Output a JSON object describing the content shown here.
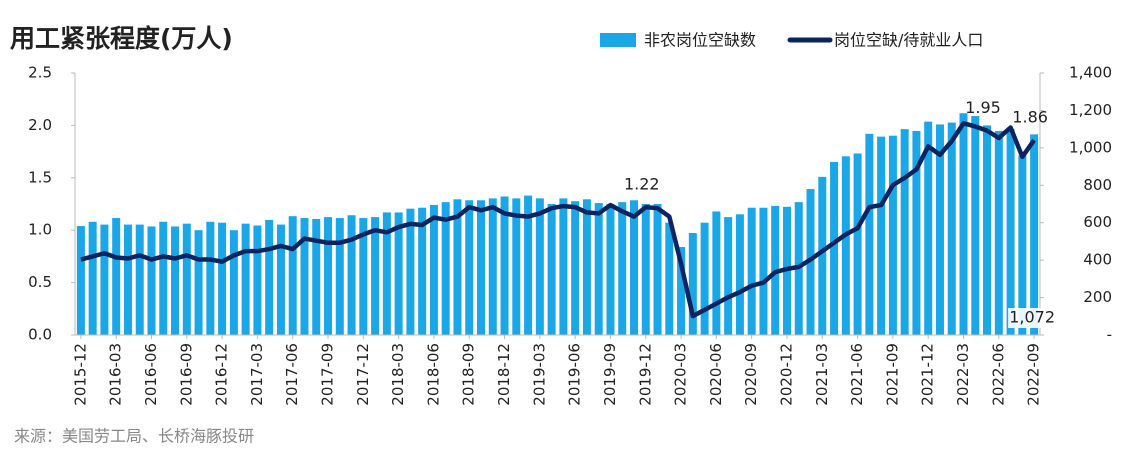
{
  "chart_data": {
    "type": "bar-line",
    "title": "用工紧张程度(万人)",
    "source": "来源：美国劳工局、长桥海豚投研",
    "categories": [
      "2015-12",
      null,
      null,
      "2016-03",
      null,
      null,
      "2016-06",
      null,
      null,
      "2016-09",
      null,
      null,
      "2016-12",
      null,
      null,
      "2017-03",
      null,
      null,
      "2017-06",
      null,
      null,
      "2017-09",
      null,
      null,
      "2017-12",
      null,
      null,
      "2018-03",
      null,
      null,
      "2018-06",
      null,
      null,
      "2018-09",
      null,
      null,
      "2018-12",
      null,
      null,
      "2019-03",
      null,
      null,
      "2019-06",
      null,
      null,
      "2019-09",
      null,
      null,
      "2019-12",
      null,
      null,
      "2020-03",
      null,
      null,
      "2020-06",
      null,
      null,
      "2020-09",
      null,
      null,
      "2020-12",
      null,
      null,
      "2021-03",
      null,
      null,
      "2021-06",
      null,
      null,
      "2021-09",
      null,
      null,
      "2021-12",
      null,
      null,
      "2022-03",
      null,
      null,
      "2022-06",
      null,
      null,
      "2022-09"
    ],
    "series": [
      {
        "name": "非农岗位空缺数",
        "type": "bar",
        "axis": "y2",
        "color": "#1aa7e8",
        "values": [
          582,
          605,
          590,
          625,
          590,
          590,
          580,
          605,
          580,
          595,
          560,
          605,
          600,
          560,
          595,
          585,
          615,
          590,
          635,
          625,
          620,
          630,
          625,
          640,
          625,
          630,
          655,
          655,
          675,
          680,
          695,
          710,
          725,
          720,
          720,
          730,
          740,
          730,
          745,
          730,
          700,
          730,
          715,
          725,
          705,
          700,
          710,
          720,
          700,
          700,
          600,
          470,
          545,
          600,
          660,
          630,
          645,
          680,
          680,
          690,
          685,
          710,
          780,
          845,
          925,
          955,
          970,
          1075,
          1060,
          1065,
          1100,
          1090,
          1140,
          1125,
          1135,
          1185,
          1170,
          1120,
          1090,
          1100,
          960,
          1072
        ],
        "value_labels": [
          null,
          null,
          null,
          null,
          null,
          null,
          null,
          null,
          null,
          null,
          null,
          null,
          null,
          null,
          null,
          null,
          null,
          null,
          null,
          null,
          null,
          null,
          null,
          null,
          null,
          null,
          null,
          null,
          null,
          null,
          null,
          null,
          null,
          null,
          null,
          null,
          null,
          null,
          null,
          null,
          null,
          null,
          null,
          null,
          null,
          null,
          null,
          null,
          null,
          null,
          null,
          null,
          null,
          null,
          null,
          null,
          null,
          null,
          null,
          null,
          null,
          null,
          null,
          null,
          null,
          null,
          null,
          null,
          null,
          null,
          null,
          null,
          null,
          null,
          null,
          null,
          null,
          null,
          null,
          null,
          null,
          "1,072"
        ]
      },
      {
        "name": "岗位空缺/待就业人口",
        "type": "line",
        "axis": "y",
        "color": "#0c2461",
        "values": [
          0.72,
          0.75,
          0.78,
          0.74,
          0.73,
          0.76,
          0.72,
          0.75,
          0.73,
          0.76,
          0.72,
          0.72,
          0.7,
          0.76,
          0.8,
          0.8,
          0.82,
          0.85,
          0.82,
          0.92,
          0.9,
          0.88,
          0.88,
          0.91,
          0.96,
          1.0,
          0.98,
          1.03,
          1.06,
          1.05,
          1.12,
          1.1,
          1.13,
          1.22,
          1.19,
          1.22,
          1.16,
          1.14,
          1.13,
          1.16,
          1.21,
          1.23,
          1.22,
          1.17,
          1.16,
          1.24,
          1.18,
          1.13,
          1.22,
          1.21,
          1.13,
          0.68,
          0.18,
          0.24,
          0.3,
          0.36,
          0.41,
          0.47,
          0.5,
          0.6,
          0.63,
          0.65,
          0.72,
          0.8,
          0.88,
          0.96,
          1.02,
          1.22,
          1.24,
          1.43,
          1.5,
          1.58,
          1.8,
          1.72,
          1.85,
          2.02,
          1.99,
          1.95,
          1.88,
          1.98,
          1.7,
          1.86
        ],
        "value_labels": [
          null,
          null,
          null,
          null,
          null,
          null,
          null,
          null,
          null,
          null,
          null,
          null,
          null,
          null,
          null,
          null,
          null,
          null,
          null,
          null,
          null,
          null,
          null,
          null,
          null,
          null,
          null,
          null,
          null,
          null,
          null,
          null,
          null,
          null,
          null,
          null,
          null,
          null,
          null,
          null,
          null,
          null,
          null,
          null,
          null,
          null,
          null,
          null,
          "1.22",
          null,
          null,
          null,
          null,
          null,
          null,
          null,
          null,
          null,
          null,
          null,
          null,
          null,
          null,
          null,
          null,
          null,
          null,
          null,
          null,
          null,
          null,
          null,
          null,
          null,
          null,
          null,
          null,
          "1.95",
          null,
          null,
          null,
          "1.86"
        ]
      }
    ],
    "ylim": [
      0,
      2.5
    ],
    "yticks": [
      {
        "value": 0,
        "label": "0.0"
      },
      0.5,
      {
        "value": 1,
        "label": "1.0"
      },
      1.5,
      {
        "value": 2,
        "label": "2.0"
      },
      2.5
    ],
    "y2lim": [
      0,
      1400
    ],
    "y2ticks": [
      {
        "value": 0,
        "label": "-"
      },
      200,
      400,
      600,
      800,
      {
        "value": 1000,
        "label": "1,000"
      },
      {
        "value": 1200,
        "label": "1,200"
      },
      {
        "value": 1400,
        "label": "1,400"
      }
    ],
    "legend": "top-right"
  }
}
